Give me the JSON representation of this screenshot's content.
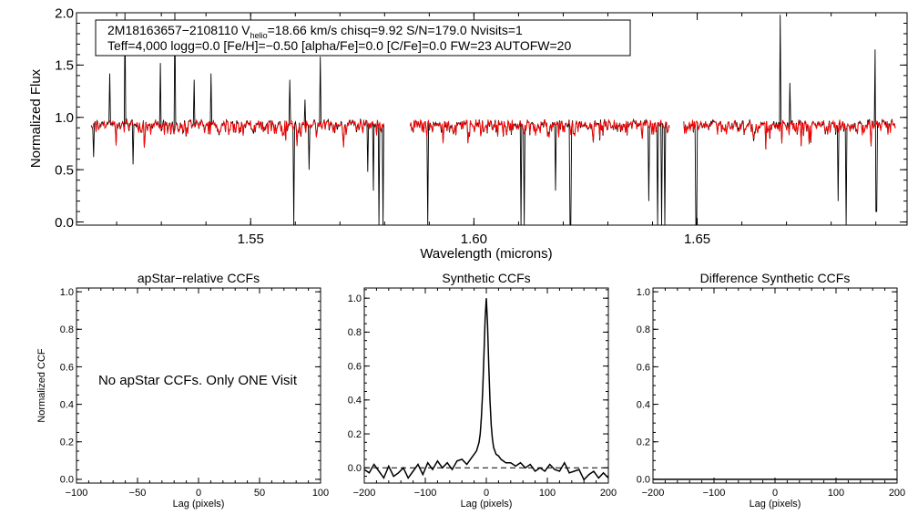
{
  "colors": {
    "observed": "#000000",
    "model": "#ff0000",
    "zero_line": "#000000"
  },
  "chart_data": [
    {
      "type": "line",
      "panel": "spectrum",
      "header_line1_main": "2M18163657−2108110  V",
      "header_sub": "helio",
      "header_line1_rest": "=18.66 km/s  chisq=9.92  S/N=179.0  Nvisits=1",
      "header_line2": "Teff=4,000 logg=0.0 [Fe/H]=−0.50 [alpha/Fe]=0.0 [C/Fe]=0.0 FW=23 AUTOFW=20",
      "xlabel": "Wavelength (microns)",
      "ylabel": "Normalized Flux",
      "xlim": [
        1.511,
        1.697
      ],
      "ylim": [
        -0.03,
        2.0
      ],
      "xticks": [
        "1.55",
        "1.60",
        "1.65"
      ],
      "xtick_values": [
        1.55,
        1.6,
        1.65
      ],
      "yticks": [
        "0.0",
        "0.5",
        "1.0",
        "1.5",
        "2.0"
      ],
      "ytick_values": [
        0.0,
        0.5,
        1.0,
        1.5,
        2.0
      ],
      "chips": [
        [
          1.5143,
          1.58
        ],
        [
          1.5857,
          1.644
        ],
        [
          1.647,
          1.6945
        ]
      ],
      "series": [
        {
          "name": "observed",
          "color": "#000000",
          "features": [
            {
              "x": 1.5148,
              "y": 0.62
            },
            {
              "x": 1.5185,
              "y": 1.42
            },
            {
              "x": 1.5218,
              "y": 2.0
            },
            {
              "x": 1.5237,
              "y": 0.55
            },
            {
              "x": 1.5298,
              "y": 1.52
            },
            {
              "x": 1.533,
              "y": 2.0
            },
            {
              "x": 1.5374,
              "y": 1.36
            },
            {
              "x": 1.5411,
              "y": 1.42
            },
            {
              "x": 1.5588,
              "y": 1.36
            },
            {
              "x": 1.5597,
              "y": -0.03
            },
            {
              "x": 1.5622,
              "y": 1.17
            },
            {
              "x": 1.5631,
              "y": 0.5
            },
            {
              "x": 1.5656,
              "y": 1.58
            },
            {
              "x": 1.5762,
              "y": 0.48
            },
            {
              "x": 1.5775,
              "y": 0.3
            },
            {
              "x": 1.5788,
              "y": -0.03
            },
            {
              "x": 1.5796,
              "y": -0.03
            },
            {
              "x": 1.5896,
              "y": -0.03
            },
            {
              "x": 1.6105,
              "y": -0.03
            },
            {
              "x": 1.6112,
              "y": -0.03
            },
            {
              "x": 1.6183,
              "y": 0.3
            },
            {
              "x": 1.6216,
              "y": -0.03
            },
            {
              "x": 1.6392,
              "y": 0.2
            },
            {
              "x": 1.6412,
              "y": -0.03
            },
            {
              "x": 1.642,
              "y": -0.03
            },
            {
              "x": 1.6428,
              "y": -0.03
            },
            {
              "x": 1.6498,
              "y": -0.03
            },
            {
              "x": 1.6686,
              "y": 1.98
            },
            {
              "x": 1.6707,
              "y": 1.33
            },
            {
              "x": 1.6816,
              "y": 0.2
            },
            {
              "x": 1.6834,
              "y": -0.03
            },
            {
              "x": 1.6898,
              "y": 1.65
            },
            {
              "x": 1.6901,
              "y": 0.1
            }
          ]
        },
        {
          "name": "model",
          "color": "#ff0000",
          "features": []
        }
      ]
    },
    {
      "type": "line",
      "panel": "apstar",
      "title": "apStar−relative CCFs",
      "ylabel": "Normalized CCF",
      "xlabel": "Lag (pixels)",
      "xlim": [
        -100,
        100
      ],
      "ylim": [
        -0.02,
        1.02
      ],
      "xticks": [
        "−100",
        "−50",
        "0",
        "50",
        "100"
      ],
      "xtick_values": [
        -100,
        -50,
        0,
        50,
        100
      ],
      "yticks": [
        "0.0",
        "0.2",
        "0.4",
        "0.6",
        "0.8",
        "1.0"
      ],
      "ytick_values": [
        0,
        0.2,
        0.4,
        0.6,
        0.8,
        1.0
      ],
      "message": "No apStar CCFs.  Only ONE Visit",
      "series": []
    },
    {
      "type": "line",
      "panel": "synthetic",
      "title": "Synthetic CCFs",
      "xlabel": "Lag (pixels)",
      "xlim": [
        -200,
        200
      ],
      "ylim": [
        -0.09,
        1.06
      ],
      "xticks": [
        "−200",
        "−100",
        "0",
        "100",
        "200"
      ],
      "xtick_values": [
        -200,
        -100,
        0,
        100,
        200
      ],
      "yticks": [
        "0.0",
        "0.2",
        "0.4",
        "0.6",
        "0.8",
        "1.0"
      ],
      "ytick_values": [
        0,
        0.2,
        0.4,
        0.6,
        0.8,
        1.0
      ],
      "zero_line": 0.0,
      "series": [
        {
          "name": "ccf",
          "color": "#000000",
          "x": [
            -200,
            -192,
            -184,
            -176,
            -168,
            -160,
            -152,
            -144,
            -136,
            -128,
            -120,
            -112,
            -104,
            -96,
            -88,
            -80,
            -72,
            -64,
            -56,
            -48,
            -40,
            -32,
            -24,
            -20,
            -16,
            -12,
            -10,
            -8,
            -6,
            -4,
            -2,
            0,
            2,
            4,
            6,
            8,
            10,
            12,
            16,
            20,
            24,
            32,
            40,
            48,
            56,
            64,
            72,
            80,
            88,
            96,
            104,
            112,
            120,
            128,
            136,
            144,
            152,
            160,
            168,
            176,
            184,
            192,
            200
          ],
          "y": [
            -0.01,
            -0.03,
            0.02,
            -0.02,
            -0.06,
            0.01,
            -0.05,
            -0.03,
            0.0,
            -0.06,
            -0.02,
            0.02,
            -0.04,
            0.03,
            -0.01,
            0.04,
            0.0,
            0.03,
            -0.01,
            0.04,
            0.05,
            0.02,
            0.06,
            0.08,
            0.1,
            0.15,
            0.2,
            0.3,
            0.45,
            0.65,
            0.88,
            1.0,
            0.85,
            0.6,
            0.4,
            0.25,
            0.17,
            0.12,
            0.08,
            0.07,
            0.05,
            0.03,
            0.03,
            0.01,
            0.03,
            0.0,
            0.02,
            -0.02,
            0.0,
            -0.02,
            0.02,
            -0.01,
            -0.02,
            0.03,
            -0.03,
            -0.02,
            -0.01,
            -0.07,
            -0.04,
            -0.02,
            -0.06,
            -0.03,
            -0.06
          ]
        }
      ]
    },
    {
      "type": "line",
      "panel": "difference",
      "title": "Difference Synthetic CCFs",
      "xlabel": "Lag (pixels)",
      "xlim": [
        -200,
        200
      ],
      "ylim": [
        -0.02,
        1.02
      ],
      "xticks": [
        "−200",
        "−100",
        "0",
        "100",
        "200"
      ],
      "xtick_values": [
        -200,
        -100,
        0,
        100,
        200
      ],
      "yticks": [
        "0.0",
        "0.2",
        "0.4",
        "0.6",
        "0.8",
        "1.0"
      ],
      "ytick_values": [
        0,
        0.2,
        0.4,
        0.6,
        0.8,
        1.0
      ],
      "series": [
        {
          "name": "difference",
          "color": "#000000",
          "x": [
            -200,
            200
          ],
          "y": [
            0.0,
            0.0
          ]
        }
      ]
    }
  ]
}
